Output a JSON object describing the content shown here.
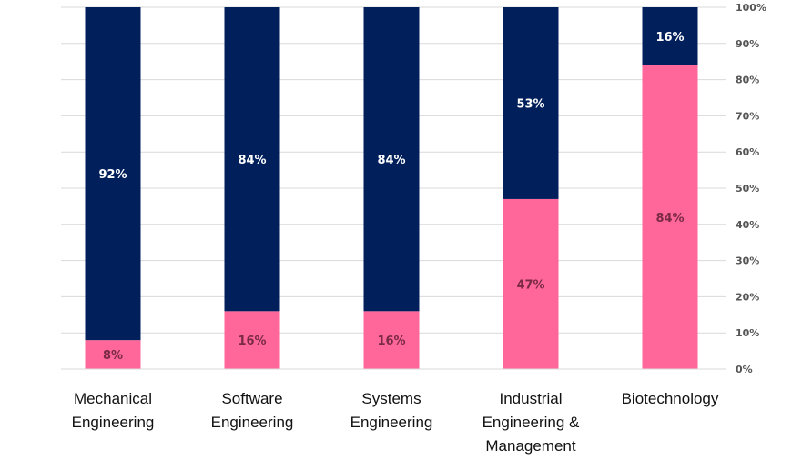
{
  "chart_data": {
    "type": "bar",
    "stacked": true,
    "percent_stacked": true,
    "categories": [
      "Mechanical Engineering",
      "Software Engineering",
      "Systems Engineering",
      "Industrial Engineering & Management",
      "Biotechnology"
    ],
    "category_label_lines": [
      [
        "Mechanical",
        "Engineering"
      ],
      [
        "Software",
        "Engineering"
      ],
      [
        "Systems",
        "Engineering"
      ],
      [
        "Industrial",
        "Engineering &",
        "Management"
      ],
      [
        "Biotechnology"
      ]
    ],
    "series": [
      {
        "color": "#ff6699",
        "values": [
          8,
          16,
          16,
          47,
          84
        ],
        "labels": [
          "8%",
          "16%",
          "16%",
          "47%",
          "84%"
        ],
        "label_color": "#7a2a45"
      },
      {
        "color": "#001f5b",
        "values": [
          92,
          84,
          84,
          53,
          16
        ],
        "labels": [
          "92%",
          "84%",
          "84%",
          "53%",
          "16%"
        ],
        "label_color": "#ffffff"
      }
    ],
    "ylim": [
      0,
      100
    ],
    "y_ticks": [
      "0%",
      "10%",
      "20%",
      "30%",
      "40%",
      "50%",
      "60%",
      "70%",
      "80%",
      "90%",
      "100%"
    ],
    "y_axis_position": "right",
    "grid": true,
    "title": "",
    "xlabel": "",
    "ylabel": ""
  }
}
